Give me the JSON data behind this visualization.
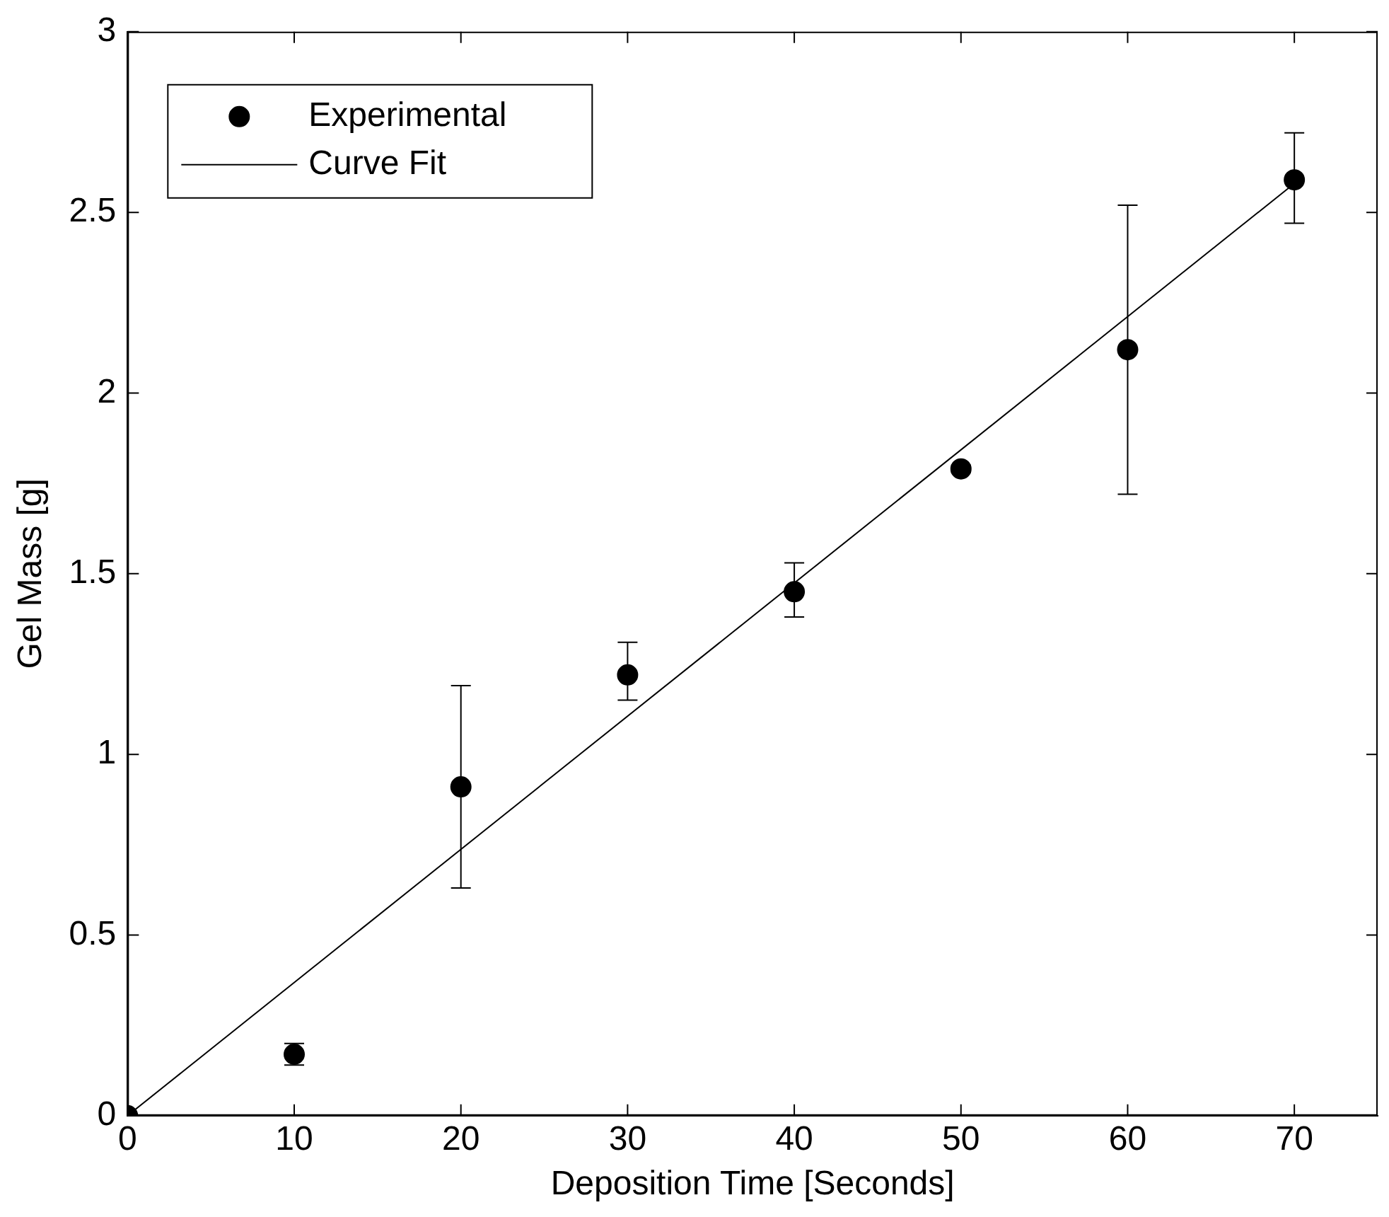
{
  "chart_data": {
    "type": "scatter",
    "xlabel": "Deposition Time [Seconds]",
    "ylabel": "Gel Mass [g]",
    "xlim": [
      0,
      75
    ],
    "xticks": [
      0,
      10,
      20,
      30,
      40,
      50,
      60,
      70
    ],
    "ylim": [
      0,
      3
    ],
    "yticks": [
      0,
      0.5,
      1,
      1.5,
      2,
      2.5,
      3
    ],
    "grid": false,
    "legend": "top left",
    "marker": "circle",
    "series": [
      {
        "name": "Experimental",
        "color": "#000000",
        "x": [
          0,
          10,
          20,
          30,
          40,
          50,
          60,
          70
        ],
        "values": [
          0,
          0.17,
          0.91,
          1.22,
          1.45,
          1.79,
          2.12,
          2.59
        ],
        "errors": [
          null,
          [
            0.14,
            0.2
          ],
          [
            0.63,
            1.19
          ],
          [
            1.15,
            1.31
          ],
          [
            1.38,
            1.53
          ],
          [
            1.78,
            1.8
          ],
          [
            1.72,
            2.52
          ],
          [
            2.47,
            2.72
          ]
        ]
      },
      {
        "name": "Curve Fit",
        "type": "line",
        "color": "#000000",
        "marker": "none",
        "line_style": "solid",
        "x": [
          0,
          70
        ],
        "values": [
          0,
          2.58
        ]
      }
    ]
  }
}
